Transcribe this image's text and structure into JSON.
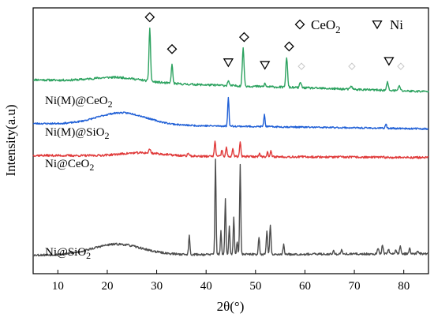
{
  "chart_data": {
    "type": "line",
    "xlabel": "2θ(°)",
    "ylabel": "Intensity(a.u)",
    "xlim": [
      5,
      85
    ],
    "xticks": [
      10,
      20,
      30,
      40,
      50,
      60,
      70,
      80
    ],
    "grid": false,
    "legend": {
      "position": "top-right",
      "entries": [
        {
          "symbol": "diamond",
          "label": "CeO",
          "sub": "2"
        },
        {
          "symbol": "triangle-down",
          "label": "Ni",
          "sub": ""
        }
      ]
    },
    "series": [
      {
        "name": "Ni(M)@CeO2",
        "label_main": "Ni(M)@CeO",
        "label_sub": "2",
        "color": "#2ca25f",
        "baseline": 0.73,
        "slope": -0.045,
        "hump": {
          "center": 22,
          "width": 7,
          "height": 0.018
        },
        "noise": 0.004,
        "seed": 11,
        "peaks": [
          {
            "x": 28.6,
            "h": 0.2,
            "w": 0.22
          },
          {
            "x": 33.1,
            "h": 0.07,
            "w": 0.22
          },
          {
            "x": 44.5,
            "h": 0.02,
            "w": 0.2
          },
          {
            "x": 47.5,
            "h": 0.14,
            "w": 0.25
          },
          {
            "x": 51.9,
            "h": 0.012,
            "w": 0.2
          },
          {
            "x": 56.3,
            "h": 0.11,
            "w": 0.25
          },
          {
            "x": 59.1,
            "h": 0.02,
            "w": 0.25
          },
          {
            "x": 69.4,
            "h": 0.012,
            "w": 0.25
          },
          {
            "x": 76.7,
            "h": 0.03,
            "w": 0.25
          },
          {
            "x": 79.1,
            "h": 0.02,
            "w": 0.25
          }
        ]
      },
      {
        "name": "Ni(M)@SiO2",
        "label_main": "Ni(M)@SiO",
        "label_sub": "2",
        "color": "#1f5fd6",
        "baseline": 0.565,
        "slope": -0.02,
        "hump": {
          "center": 23,
          "width": 7,
          "height": 0.045
        },
        "noise": 0.003,
        "seed": 23,
        "peaks": [
          {
            "x": 44.5,
            "h": 0.11,
            "w": 0.18
          },
          {
            "x": 51.8,
            "h": 0.045,
            "w": 0.18
          },
          {
            "x": 76.4,
            "h": 0.015,
            "w": 0.2
          }
        ]
      },
      {
        "name": "Ni@CeO2",
        "label_main": "Ni@CeO",
        "label_sub": "2",
        "color": "#e03a3a",
        "baseline": 0.445,
        "slope": -0.008,
        "hump": {
          "center": 27,
          "width": 6,
          "height": 0.012
        },
        "noise": 0.004,
        "seed": 37,
        "peaks": [
          {
            "x": 28.6,
            "h": 0.015,
            "w": 0.25
          },
          {
            "x": 36.4,
            "h": 0.012,
            "w": 0.2
          },
          {
            "x": 41.8,
            "h": 0.06,
            "w": 0.18
          },
          {
            "x": 43.2,
            "h": 0.025,
            "w": 0.18
          },
          {
            "x": 44.1,
            "h": 0.035,
            "w": 0.18
          },
          {
            "x": 45.4,
            "h": 0.03,
            "w": 0.18
          },
          {
            "x": 46.9,
            "h": 0.055,
            "w": 0.18
          },
          {
            "x": 50.8,
            "h": 0.015,
            "w": 0.18
          },
          {
            "x": 52.4,
            "h": 0.018,
            "w": 0.18
          },
          {
            "x": 53.1,
            "h": 0.02,
            "w": 0.18
          }
        ]
      },
      {
        "name": "Ni@SiO2",
        "label_main": "Ni@SiO",
        "label_sub": "2",
        "color": "#4d4d4d",
        "baseline": 0.07,
        "slope": 0.005,
        "hump": {
          "center": 22,
          "width": 7,
          "height": 0.04
        },
        "noise": 0.004,
        "seed": 53,
        "peaks": [
          {
            "x": 36.6,
            "h": 0.07,
            "w": 0.18
          },
          {
            "x": 41.9,
            "h": 0.36,
            "w": 0.16
          },
          {
            "x": 43.0,
            "h": 0.09,
            "w": 0.16
          },
          {
            "x": 43.9,
            "h": 0.21,
            "w": 0.16
          },
          {
            "x": 44.7,
            "h": 0.11,
            "w": 0.16
          },
          {
            "x": 45.6,
            "h": 0.14,
            "w": 0.16
          },
          {
            "x": 46.3,
            "h": 0.05,
            "w": 0.16
          },
          {
            "x": 46.9,
            "h": 0.34,
            "w": 0.16
          },
          {
            "x": 50.7,
            "h": 0.065,
            "w": 0.18
          },
          {
            "x": 52.3,
            "h": 0.09,
            "w": 0.18
          },
          {
            "x": 53.0,
            "h": 0.11,
            "w": 0.18
          },
          {
            "x": 55.7,
            "h": 0.035,
            "w": 0.18
          },
          {
            "x": 65.8,
            "h": 0.012,
            "w": 0.2
          },
          {
            "x": 67.4,
            "h": 0.015,
            "w": 0.2
          },
          {
            "x": 74.8,
            "h": 0.02,
            "w": 0.2
          },
          {
            "x": 75.7,
            "h": 0.035,
            "w": 0.2
          },
          {
            "x": 76.9,
            "h": 0.02,
            "w": 0.2
          },
          {
            "x": 78.4,
            "h": 0.015,
            "w": 0.2
          },
          {
            "x": 79.3,
            "h": 0.03,
            "w": 0.2
          },
          {
            "x": 81.2,
            "h": 0.02,
            "w": 0.2
          },
          {
            "x": 82.8,
            "h": 0.012,
            "w": 0.2
          }
        ]
      }
    ],
    "markers": [
      {
        "symbol": "diamond",
        "x": 28.6,
        "y": 0.965,
        "style": "solid"
      },
      {
        "symbol": "diamond",
        "x": 33.1,
        "y": 0.845,
        "style": "solid"
      },
      {
        "symbol": "triangle-down",
        "x": 44.5,
        "y": 0.795,
        "style": "solid"
      },
      {
        "symbol": "diamond",
        "x": 47.7,
        "y": 0.89,
        "style": "solid"
      },
      {
        "symbol": "triangle-down",
        "x": 51.9,
        "y": 0.785,
        "style": "solid"
      },
      {
        "symbol": "diamond",
        "x": 56.8,
        "y": 0.855,
        "style": "solid"
      },
      {
        "symbol": "diamond",
        "x": 59.3,
        "y": 0.78,
        "style": "faint"
      },
      {
        "symbol": "diamond",
        "x": 69.5,
        "y": 0.78,
        "style": "faint"
      },
      {
        "symbol": "triangle-down",
        "x": 77.0,
        "y": 0.8,
        "style": "solid"
      },
      {
        "symbol": "diamond",
        "x": 79.4,
        "y": 0.78,
        "style": "faint"
      }
    ]
  }
}
